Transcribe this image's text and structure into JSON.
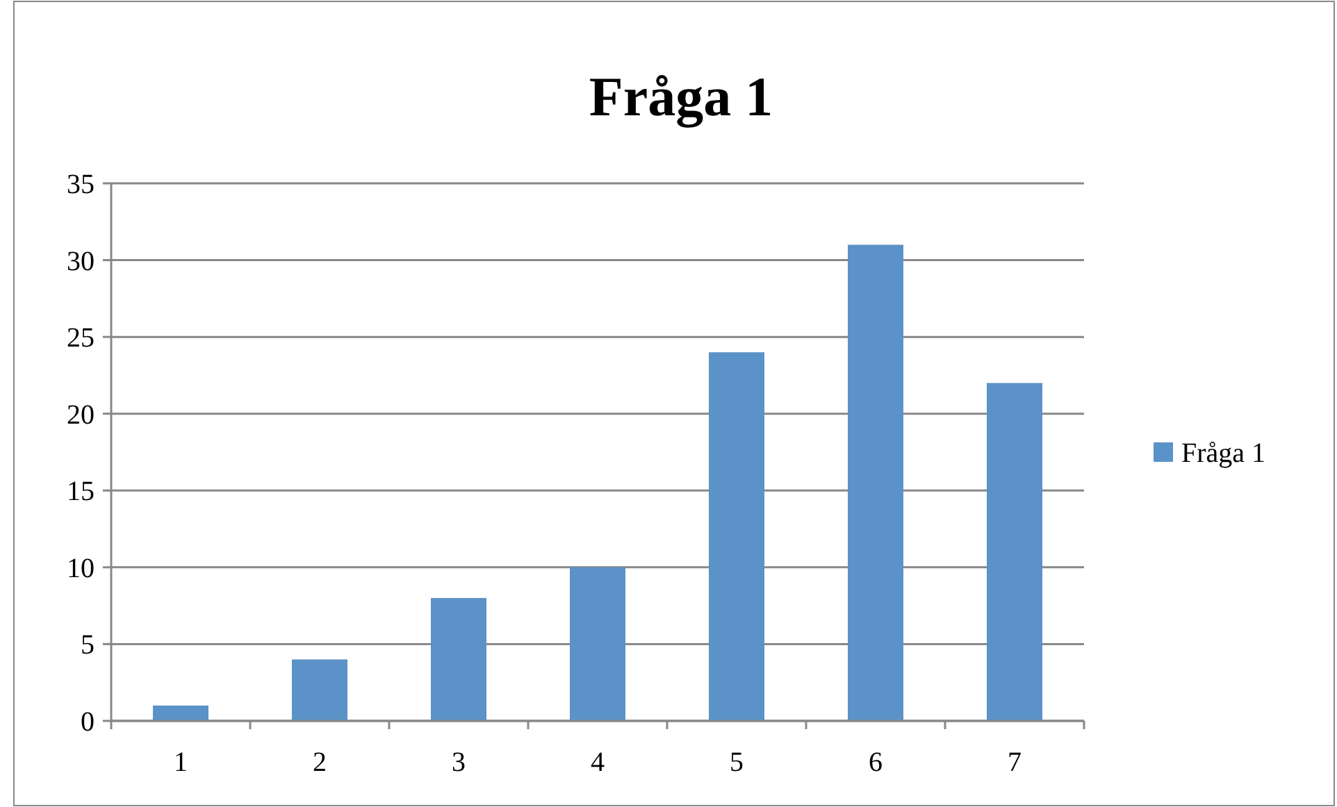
{
  "chart_data": {
    "type": "bar",
    "title": "Fråga 1",
    "categories": [
      "1",
      "2",
      "3",
      "4",
      "5",
      "6",
      "7"
    ],
    "series": [
      {
        "name": "Fråga 1",
        "color": "#5b92c8",
        "values": [
          1,
          4,
          8,
          10,
          24,
          31,
          22
        ]
      }
    ],
    "ylim": [
      0,
      35
    ],
    "yticks": [
      0,
      5,
      10,
      15,
      20,
      25,
      30,
      35
    ],
    "grid": "y",
    "legend": "right"
  }
}
